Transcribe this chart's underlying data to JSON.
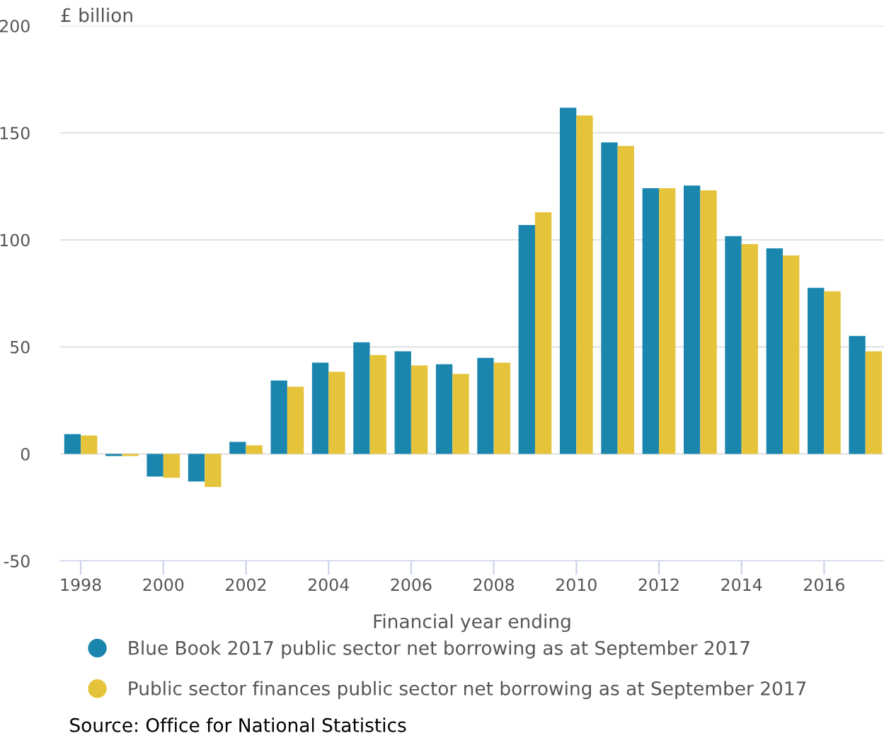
{
  "chart_data": {
    "type": "bar",
    "ylabel": "£ billion",
    "xlabel": "Financial year ending",
    "x": [
      1998,
      1999,
      2000,
      2001,
      2002,
      2003,
      2004,
      2005,
      2006,
      2007,
      2008,
      2009,
      2010,
      2011,
      2012,
      2013,
      2014,
      2015,
      2016,
      2017
    ],
    "series": [
      {
        "name": "Blue Book 2017 public sector net borrowing as at September 2017",
        "color": "#1a86ad",
        "values": [
          9.2,
          -1,
          -10.6,
          -12.9,
          5.6,
          34.3,
          42.6,
          52.1,
          47.9,
          41.9,
          44.9,
          106.9,
          161.7,
          145.5,
          124.1,
          125.4,
          101.7,
          96,
          77.6,
          55.1
        ]
      },
      {
        "name": "Public sector finances public sector net borrowing as at September 2017",
        "color": "#e5c33a",
        "values": [
          8.6,
          -1,
          -11.2,
          -15.5,
          4.0,
          31.4,
          38.3,
          46.2,
          41.3,
          37.3,
          42.6,
          112.9,
          158.1,
          143.9,
          124.1,
          123.1,
          98,
          92.7,
          75.9,
          47.9
        ]
      }
    ],
    "xlim": [
      1997.5,
      2017.45
    ],
    "xticks": [
      1998,
      2000,
      2002,
      2004,
      2006,
      2008,
      2010,
      2012,
      2014,
      2016
    ],
    "ylim": [
      -50,
      200
    ],
    "yticks": [
      -50,
      0,
      50,
      100,
      150,
      200
    ],
    "grid": "y",
    "legend": "bottom",
    "annotations": [
      "Source: Office for National Statistics"
    ]
  }
}
